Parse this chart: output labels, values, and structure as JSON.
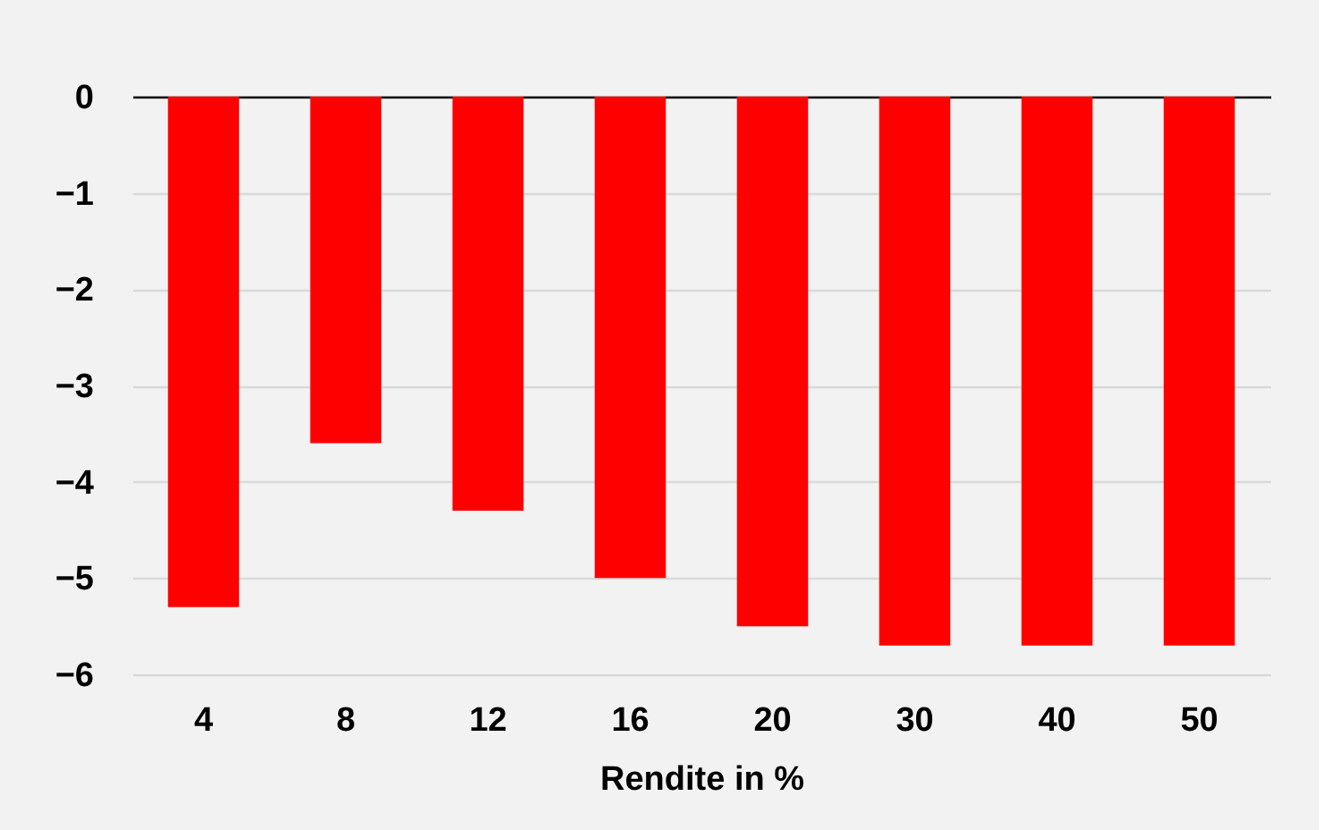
{
  "chart_data": {
    "type": "bar",
    "xlabel": "Rendite in %",
    "categories": [
      "4",
      "8",
      "12",
      "16",
      "20",
      "30",
      "40",
      "50"
    ],
    "values": [
      -5.3,
      -3.6,
      -4.3,
      -5.0,
      -5.5,
      -5.7,
      -5.7,
      -5.7
    ],
    "color": "#ff0000",
    "ylim": [
      -6,
      0
    ],
    "yticks": [
      -6,
      -5,
      -4,
      -3,
      -2,
      -1,
      0
    ],
    "grid": "y"
  }
}
